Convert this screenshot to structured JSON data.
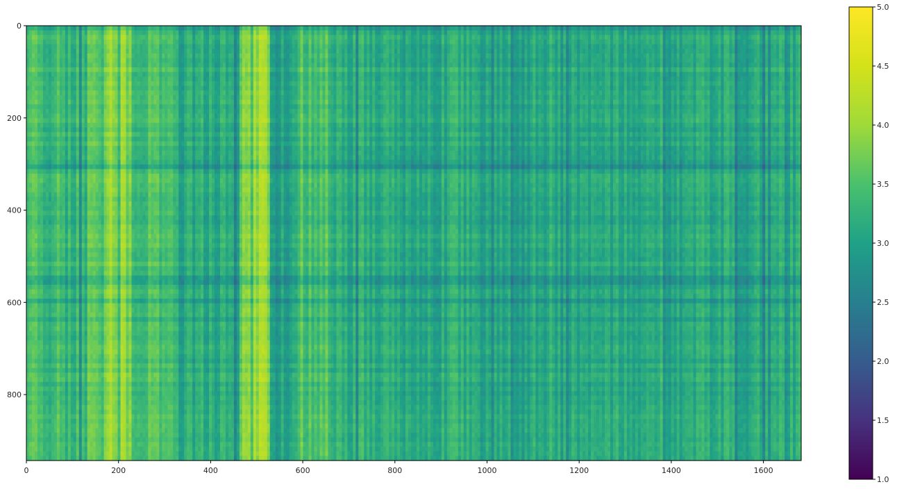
{
  "chart_data": {
    "type": "heatmap",
    "title": "",
    "xlabel": "",
    "ylabel": "",
    "xlim": [
      0,
      1682
    ],
    "ylim": [
      943,
      0
    ],
    "x_ticks": [
      0,
      200,
      400,
      600,
      800,
      1000,
      1200,
      1400,
      1600
    ],
    "y_ticks": [
      0,
      200,
      400,
      600,
      800
    ],
    "colormap": "viridis",
    "colorbar": {
      "range": [
        1.0,
        5.0
      ],
      "ticks": [
        1.0,
        1.5,
        2.0,
        2.5,
        3.0,
        3.5,
        4.0,
        4.5,
        5.0
      ],
      "tick_labels": [
        "1.0",
        "1.5",
        "2.0",
        "2.5",
        "3.0",
        "3.5",
        "4.0",
        "4.5",
        "5.0"
      ]
    },
    "column_profile": [
      {
        "x": [
          0,
          100
        ],
        "value": 3.4
      },
      {
        "x": [
          100,
          130
        ],
        "value": 3.3
      },
      {
        "x": [
          130,
          170
        ],
        "value": 3.6
      },
      {
        "x": [
          170,
          230
        ],
        "value": 3.9
      },
      {
        "x": [
          230,
          330
        ],
        "value": 3.5
      },
      {
        "x": [
          330,
          460
        ],
        "value": 3.15
      },
      {
        "x": [
          460,
          530
        ],
        "value": 4.0
      },
      {
        "x": [
          530,
          590
        ],
        "value": 3.0
      },
      {
        "x": [
          590,
          660
        ],
        "value": 3.5
      },
      {
        "x": [
          660,
          760
        ],
        "value": 3.2
      },
      {
        "x": [
          760,
          980
        ],
        "value": 3.15
      },
      {
        "x": [
          980,
          1100
        ],
        "value": 3.05
      },
      {
        "x": [
          1100,
          1682
        ],
        "value": 3.15
      }
    ],
    "grid": false,
    "legend": "none"
  }
}
